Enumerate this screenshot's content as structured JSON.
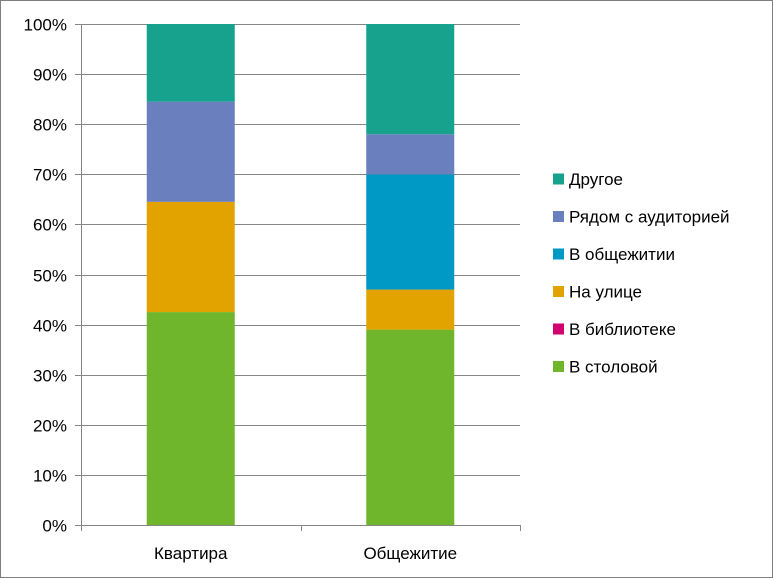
{
  "chart_data": {
    "type": "bar",
    "stacked": true,
    "percent": true,
    "categories": [
      "Квартира",
      "Общежитие"
    ],
    "series": [
      {
        "name": "В столовой",
        "color": "#70B62C",
        "values": [
          42.5,
          39
        ]
      },
      {
        "name": "В библиотеке",
        "color": "#D2006E",
        "values": [
          0,
          0
        ]
      },
      {
        "name": "На улице",
        "color": "#E2A300",
        "values": [
          22,
          8
        ]
      },
      {
        "name": "В общежитии",
        "color": "#0099C6",
        "values": [
          0,
          23
        ]
      },
      {
        "name": "Рядом с аудиторией",
        "color": "#6A7FBD",
        "values": [
          20,
          8
        ]
      },
      {
        "name": "Другое",
        "color": "#16A28C",
        "values": [
          15.5,
          22
        ]
      }
    ],
    "ylim": [
      0,
      100
    ],
    "yticks": [
      "0%",
      "10%",
      "20%",
      "30%",
      "40%",
      "50%",
      "60%",
      "70%",
      "80%",
      "90%",
      "100%"
    ],
    "grid": true,
    "legend_position": "right",
    "legend_order": [
      "Другое",
      "Рядом с аудиторией",
      "В общежитии",
      "На улице",
      "В библиотеке",
      "В столовой"
    ]
  }
}
